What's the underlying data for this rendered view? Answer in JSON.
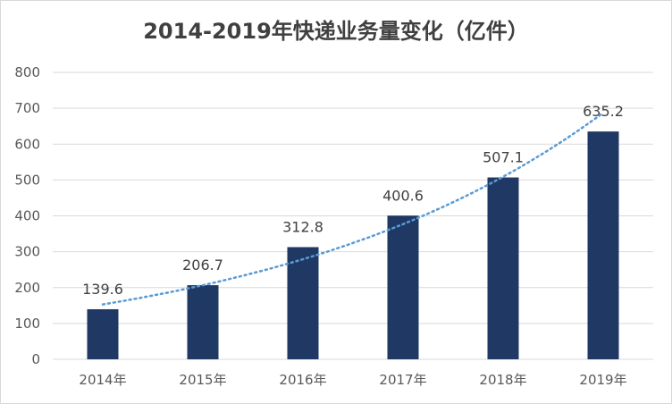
{
  "chart_data": {
    "type": "bar",
    "title": "2014-2019年快递业务量变化（亿件）",
    "xlabel": "",
    "ylabel": "",
    "categories": [
      "2014年",
      "2015年",
      "2016年",
      "2017年",
      "2018年",
      "2019年"
    ],
    "values": [
      139.6,
      206.7,
      312.8,
      400.6,
      507.1,
      635.2
    ],
    "data_labels": [
      "139.6",
      "206.7",
      "312.8",
      "400.6",
      "507.1",
      "635.2"
    ],
    "ylim": [
      0,
      800
    ],
    "yticks": [
      0,
      100,
      200,
      300,
      400,
      500,
      600,
      700,
      800
    ],
    "grid": true,
    "legend": "none",
    "trendline": "exponential",
    "colors": {
      "bar": "#1f3864",
      "trendline": "#5b9bd5",
      "grid": "#d9d9d9",
      "text": "#595959"
    }
  }
}
